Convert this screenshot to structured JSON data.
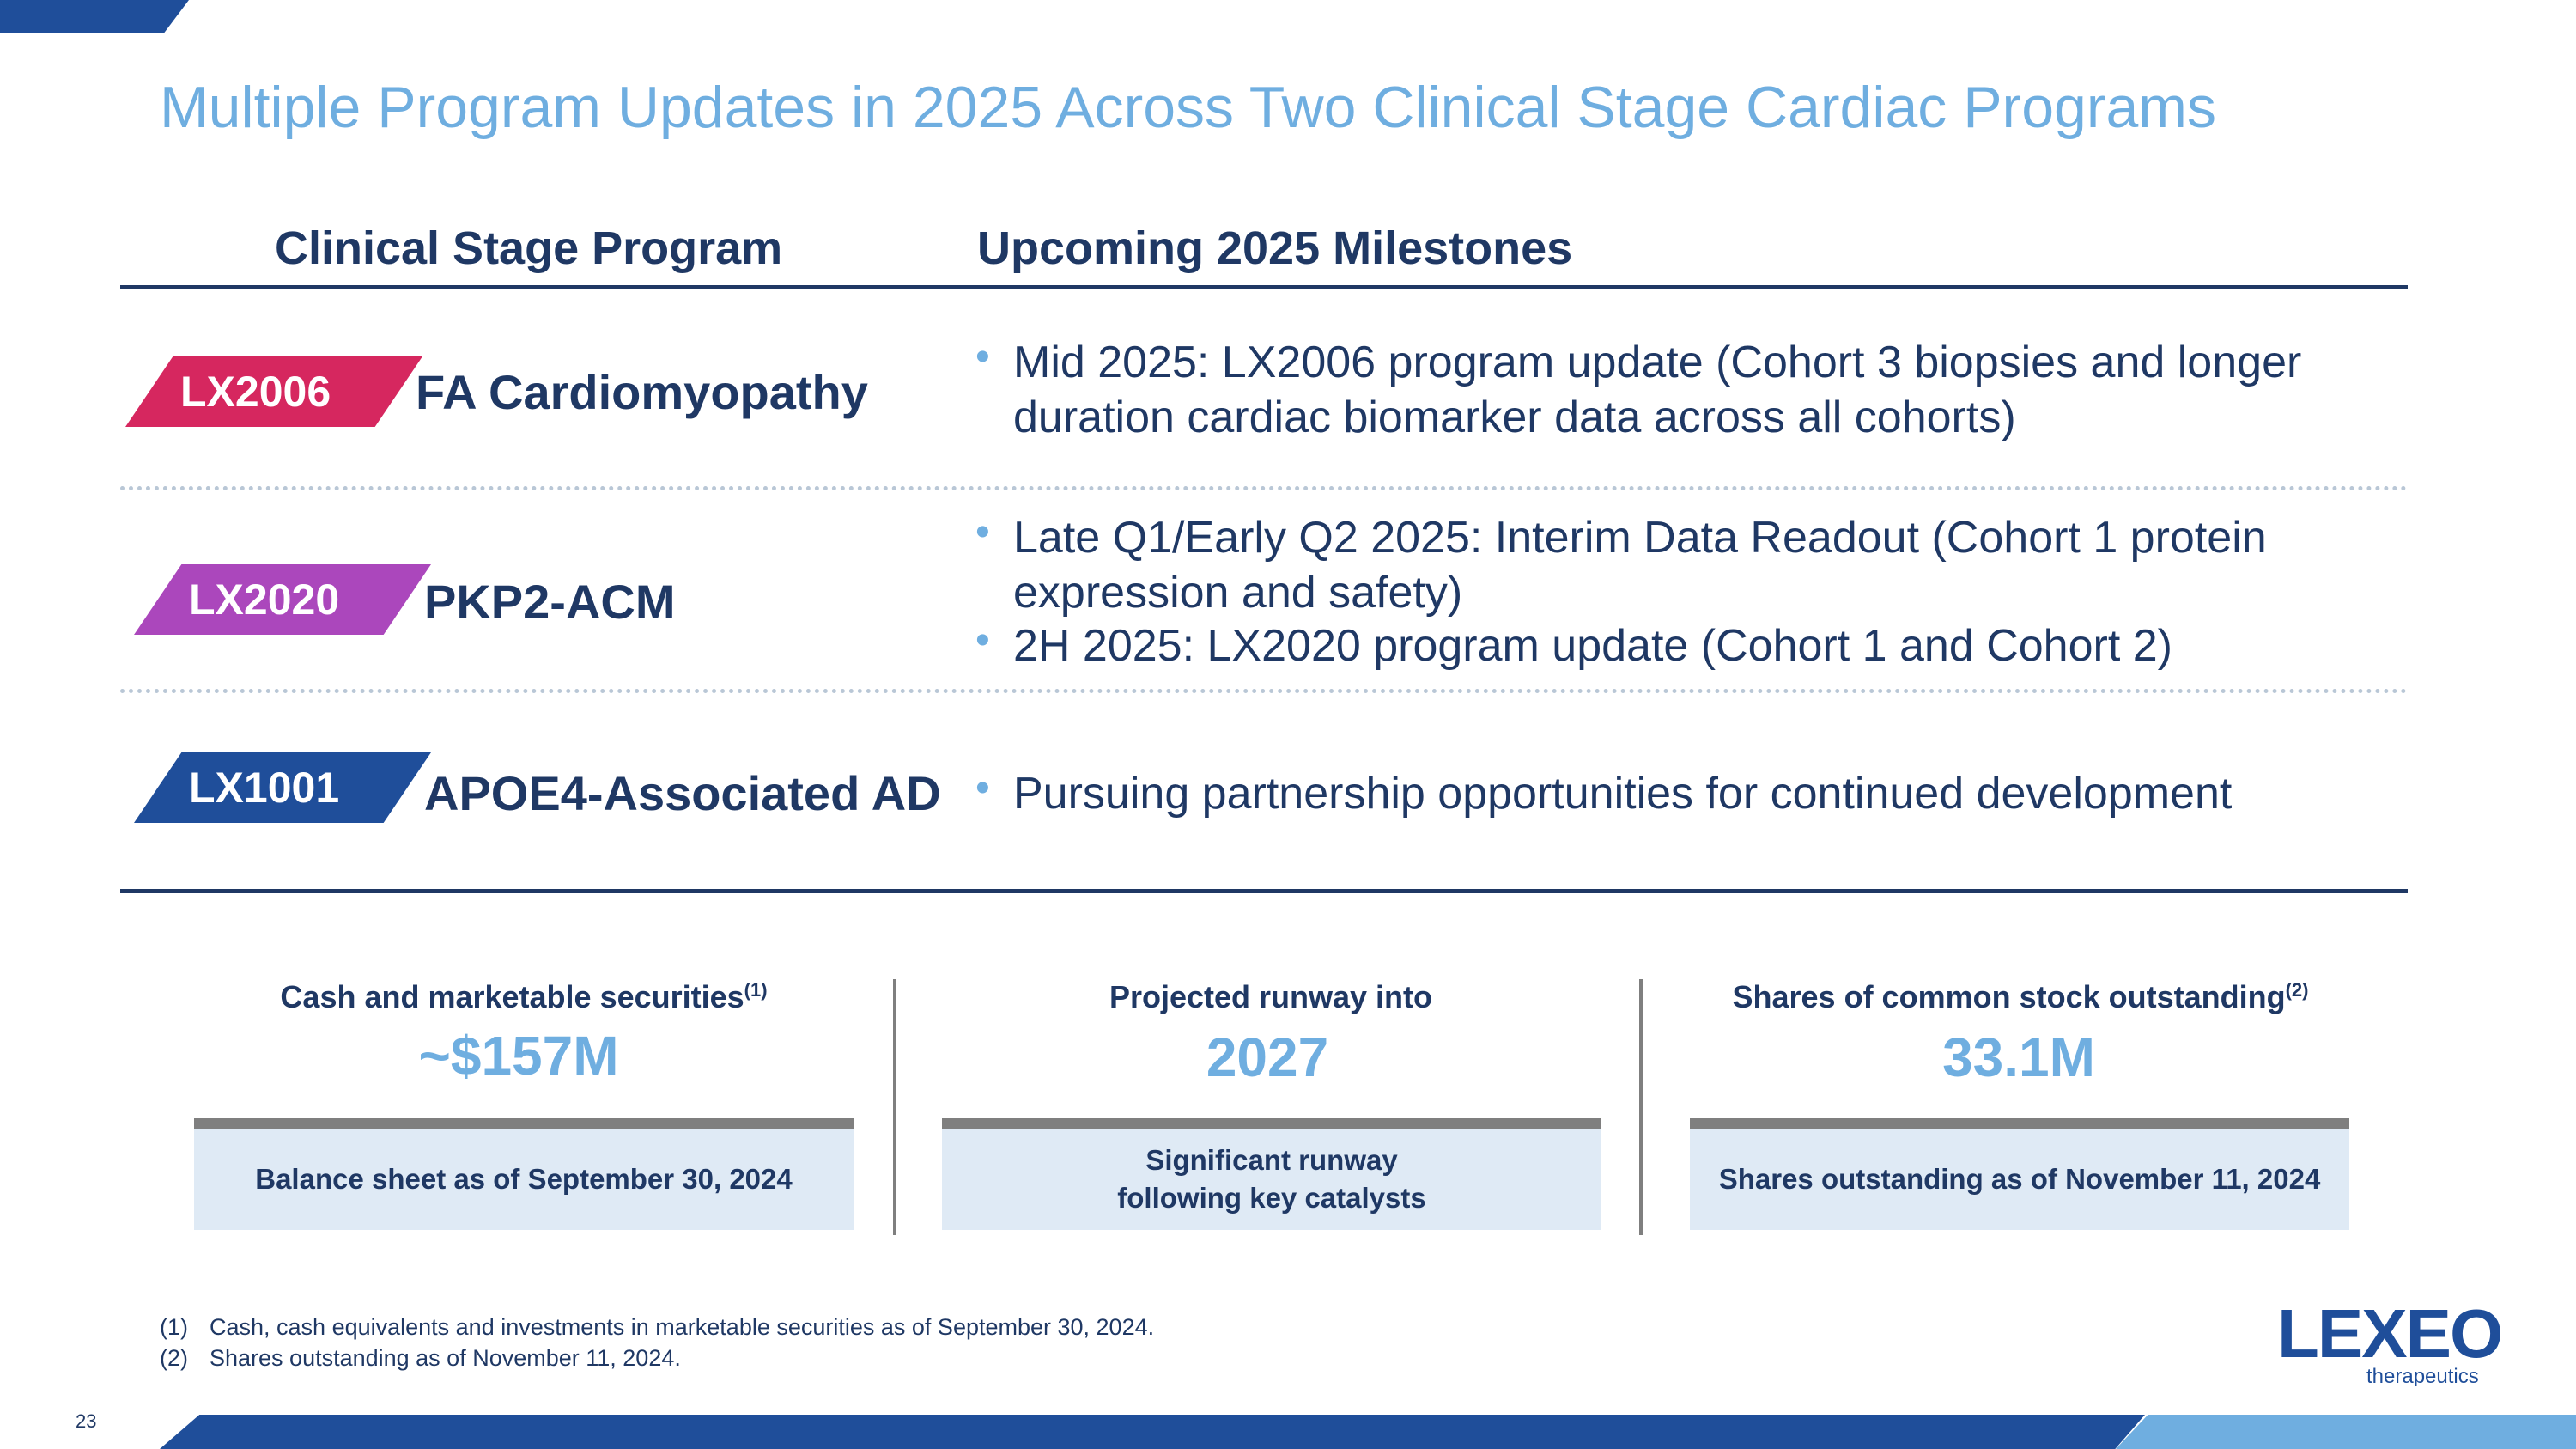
{
  "title": "Multiple Program Updates in 2025 Across Two Clinical Stage Cardiac Programs",
  "columns": {
    "left": "Clinical Stage Program",
    "right": "Upcoming 2025 Milestones"
  },
  "programs": [
    {
      "code": "LX2006",
      "name": "FA Cardiomyopathy",
      "badge_color": "#d6275f",
      "milestones": [
        "Mid 2025: LX2006 program update (Cohort 3 biopsies and longer duration cardiac biomarker data across all cohorts)"
      ]
    },
    {
      "code": "LX2020",
      "name": "PKP2-ACM",
      "badge_color": "#ab47bc",
      "milestones": [
        "Late Q1/Early Q2 2025: Interim Data Readout (Cohort 1 protein expression and safety)",
        "2H 2025: LX2020 program update (Cohort 1 and Cohort 2)"
      ]
    },
    {
      "code": "LX1001",
      "name": "APOE4-Associated AD",
      "badge_color": "#1f4e9a",
      "milestones": [
        "Pursuing partnership opportunities for continued development"
      ]
    }
  ],
  "stats": [
    {
      "label": "Cash and marketable securities",
      "footnote_ref": "(1)",
      "value": "~$157M",
      "note_lines": [
        "Balance sheet as of September 30, 2024"
      ]
    },
    {
      "label": "Projected runway into",
      "footnote_ref": "",
      "value": "2027",
      "note_lines": [
        "Significant runway",
        "following key catalysts"
      ]
    },
    {
      "label": "Shares of common stock outstanding",
      "footnote_ref": "(2)",
      "value": "33.1M",
      "note_lines": [
        "Shares outstanding as of November 11, 2024"
      ]
    }
  ],
  "footnotes": [
    {
      "num": "(1)",
      "text": "Cash, cash equivalents and investments in marketable securities as of September 30, 2024."
    },
    {
      "num": "(2)",
      "text": "Shares outstanding as of November 11, 2024."
    }
  ],
  "page_number": "23",
  "logo": {
    "word": "LEXEO",
    "sub": "therapeutics"
  },
  "colors": {
    "navy": "#1f3864",
    "title_blue": "#6faee0",
    "brand_blue": "#1f4e9a",
    "pink": "#d6275f",
    "purple": "#ab47bc",
    "note_bg": "#dfeaf5"
  }
}
